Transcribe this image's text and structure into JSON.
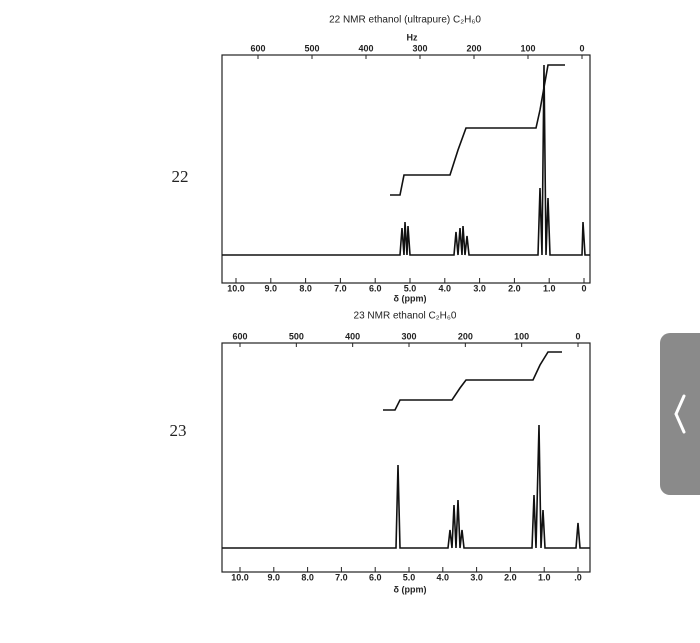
{
  "spectra": [
    {
      "number": "22",
      "title": "22 NMR ethanol (ultrapure) C₂H₆0",
      "top_axis_label": "Hz",
      "top_ticks": [
        "600",
        "500",
        "400",
        "300",
        "200",
        "100",
        "0"
      ],
      "bottom_ticks": [
        "10.0",
        "9.0",
        "8.0",
        "7.0",
        "6.0",
        "5.0",
        "4.0",
        "3.0",
        "2.0",
        "1.0",
        "0"
      ],
      "x_label": "δ (ppm)"
    },
    {
      "number": "23",
      "title": "23 NMR ethanol C₂H₆0",
      "top_ticks": [
        "600",
        "500",
        "400",
        "300",
        "200",
        "100",
        "0"
      ],
      "bottom_ticks": [
        "10.0",
        "9.0",
        "8.0",
        "7.0",
        "6.0",
        "5.0",
        "4.0",
        "3.0",
        "2.0",
        "1.0",
        ".0"
      ],
      "x_label": "δ (ppm)"
    }
  ]
}
